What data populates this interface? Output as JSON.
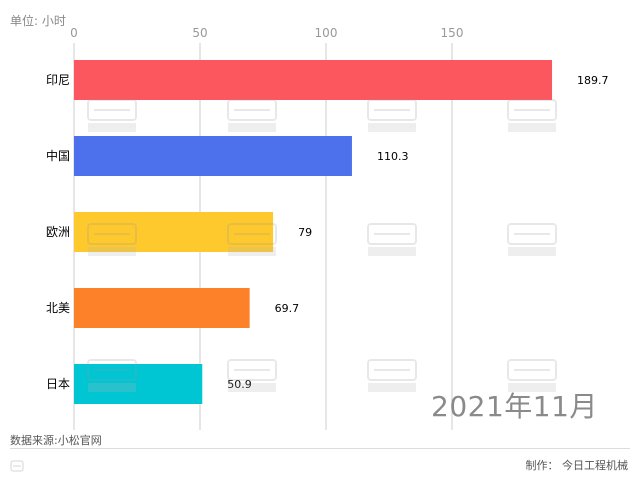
{
  "unit_label": "单位: 小时",
  "period_label": "2021年11月",
  "source_label": "数据来源:小松官网",
  "maker_label": "制作： 今日工程机械",
  "colors": {
    "axis": "#cccccc",
    "tick_text": "#999999",
    "category_text": "#000000",
    "value_text": "#000000"
  },
  "chart_data": {
    "type": "bar",
    "orientation": "horizontal",
    "categories": [
      "印尼",
      "中国",
      "欧洲",
      "北美",
      "日本"
    ],
    "values": [
      189.7,
      110.3,
      79,
      69.7,
      50.9
    ],
    "value_labels": [
      "189.7",
      "110.3",
      "79",
      "69.7",
      "50.9"
    ],
    "bar_colors": [
      "#fc575e",
      "#4d71ec",
      "#fdc92d",
      "#fd8128",
      "#00c5d3"
    ],
    "xlim": [
      0,
      200
    ],
    "xticks": [
      0,
      50,
      100,
      150
    ],
    "xtick_labels": [
      "0",
      "50",
      "100",
      "150"
    ],
    "title": "",
    "xlabel": "",
    "ylabel": "",
    "grid": true,
    "legend": "none"
  }
}
